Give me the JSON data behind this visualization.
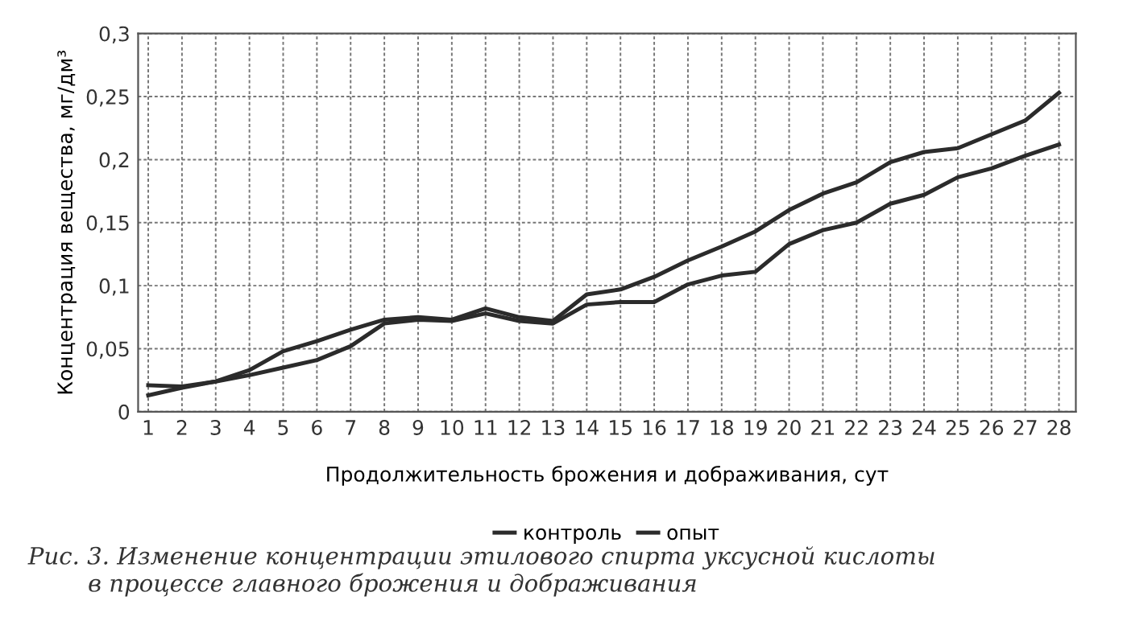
{
  "chart_data": {
    "type": "line",
    "xlabel": "Продолжительность брожения и дображивания, сут",
    "ylabel": "Концентрация вещества, мг/дм³",
    "x": [
      1,
      2,
      3,
      4,
      5,
      6,
      7,
      8,
      9,
      10,
      11,
      12,
      13,
      14,
      15,
      16,
      17,
      18,
      19,
      20,
      21,
      22,
      23,
      24,
      25,
      26,
      27,
      28
    ],
    "series": [
      {
        "name": "контроль",
        "color": "#2b2b2b",
        "values": [
          0.021,
          0.02,
          0.024,
          0.029,
          0.035,
          0.041,
          0.052,
          0.07,
          0.073,
          0.072,
          0.078,
          0.072,
          0.07,
          0.085,
          0.087,
          0.087,
          0.101,
          0.108,
          0.111,
          0.133,
          0.144,
          0.15,
          0.165,
          0.172,
          0.186,
          0.193,
          0.203,
          0.212
        ]
      },
      {
        "name": "опыт",
        "color": "#2b2b2b",
        "values": [
          0.013,
          0.019,
          0.024,
          0.033,
          0.048,
          0.056,
          0.065,
          0.073,
          0.075,
          0.073,
          0.082,
          0.075,
          0.072,
          0.093,
          0.097,
          0.107,
          0.12,
          0.131,
          0.143,
          0.16,
          0.173,
          0.182,
          0.198,
          0.206,
          0.209,
          0.22,
          0.231,
          0.253
        ]
      }
    ],
    "xlim": [
      0.7,
      28.5
    ],
    "xticks": [
      1,
      2,
      3,
      4,
      5,
      6,
      7,
      8,
      9,
      10,
      11,
      12,
      13,
      14,
      15,
      16,
      17,
      18,
      19,
      20,
      21,
      22,
      23,
      24,
      25,
      26,
      27,
      28
    ],
    "ylim": [
      0,
      0.3
    ],
    "yticks": [
      0,
      {
        "value": 0.05,
        "label": "0,05"
      },
      {
        "value": 0.1,
        "label": "0,1"
      },
      {
        "value": 0.15,
        "label": "0,15"
      },
      {
        "value": 0.2,
        "label": "0,2"
      },
      {
        "value": 0.25,
        "label": "0,25"
      },
      {
        "value": 0.3,
        "label": "0,3"
      }
    ],
    "grid": true,
    "legend": "bottom",
    "marker": "none",
    "line_style": "solid",
    "annotations": [
      "Рис. 3. Изменение концентрации этилового спирта уксусной кислоты\n        в процессе главного брожения и дображивания"
    ]
  }
}
